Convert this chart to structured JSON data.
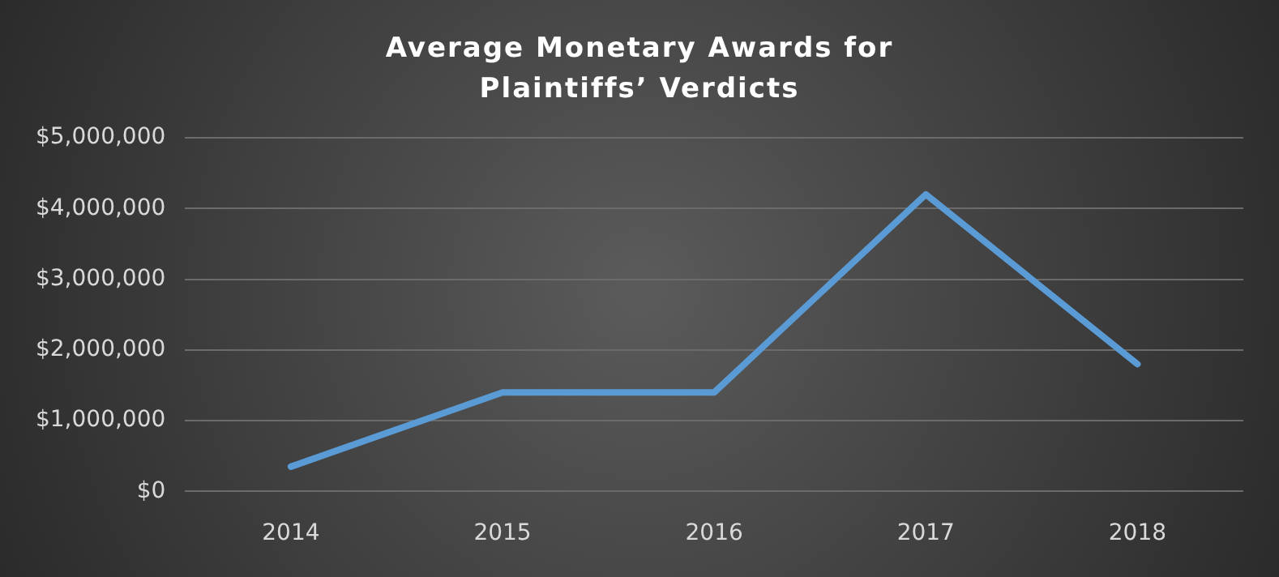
{
  "chart_data": {
    "type": "line",
    "title": "Average Monetary Awards for Plaintiffs’ Verdicts",
    "categories": [
      "2014",
      "2015",
      "2016",
      "2017",
      "2018"
    ],
    "series": [
      {
        "color": "#5b9bd5",
        "values": [
          350000,
          1400000,
          1400000,
          4200000,
          1800000
        ]
      }
    ],
    "ylim": [
      0,
      5000000
    ],
    "yticks": [
      {
        "value": 0,
        "label": "$0"
      },
      {
        "value": 1000000,
        "label": "$1,000,000"
      },
      {
        "value": 2000000,
        "label": "$2,000,000"
      },
      {
        "value": 3000000,
        "label": "$3,000,000"
      },
      {
        "value": 4000000,
        "label": "$4,000,000"
      },
      {
        "value": 5000000,
        "label": "$5,000,000"
      }
    ],
    "grid": "y",
    "legend": false,
    "marker": "none",
    "line_style": "solid"
  }
}
